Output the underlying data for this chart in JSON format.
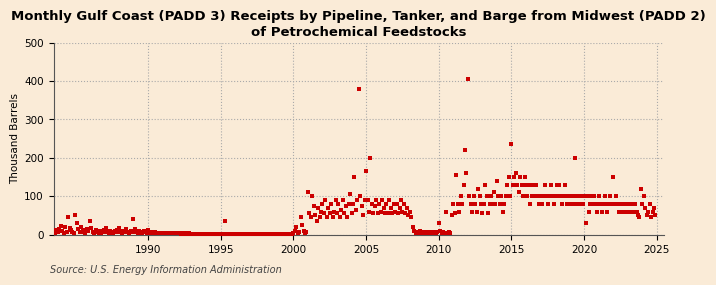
{
  "title": "Monthly Gulf Coast (PADD 3) Receipts by Pipeline, Tanker, and Barge from Midwest (PADD 2)\nof Petrochemical Feedstocks",
  "ylabel": "Thousand Barrels",
  "source": "Source: U.S. Energy Information Administration",
  "background_color": "#faebd7",
  "marker_color": "#cc0000",
  "xlim": [
    1983.5,
    2025.5
  ],
  "ylim": [
    0,
    500
  ],
  "yticks": [
    0,
    100,
    200,
    300,
    400,
    500
  ],
  "xticks": [
    1990,
    1995,
    2000,
    2005,
    2010,
    2015,
    2020,
    2025
  ],
  "data": [
    [
      1983.5,
      8
    ],
    [
      1983.6,
      5
    ],
    [
      1983.7,
      12
    ],
    [
      1983.8,
      8
    ],
    [
      1983.9,
      15
    ],
    [
      1984.0,
      22
    ],
    [
      1984.1,
      10
    ],
    [
      1984.2,
      5
    ],
    [
      1984.3,
      20
    ],
    [
      1984.4,
      8
    ],
    [
      1984.5,
      45
    ],
    [
      1984.6,
      18
    ],
    [
      1984.7,
      12
    ],
    [
      1984.8,
      8
    ],
    [
      1984.9,
      5
    ],
    [
      1985.0,
      50
    ],
    [
      1985.1,
      30
    ],
    [
      1985.2,
      15
    ],
    [
      1985.3,
      8
    ],
    [
      1985.4,
      20
    ],
    [
      1985.5,
      12
    ],
    [
      1985.6,
      8
    ],
    [
      1985.7,
      5
    ],
    [
      1985.8,
      15
    ],
    [
      1985.9,
      10
    ],
    [
      1986.0,
      35
    ],
    [
      1986.1,
      18
    ],
    [
      1986.2,
      8
    ],
    [
      1986.3,
      5
    ],
    [
      1986.4,
      12
    ],
    [
      1986.5,
      8
    ],
    [
      1986.6,
      5
    ],
    [
      1986.7,
      10
    ],
    [
      1986.8,
      5
    ],
    [
      1986.9,
      8
    ],
    [
      1987.0,
      12
    ],
    [
      1987.1,
      18
    ],
    [
      1987.2,
      8
    ],
    [
      1987.3,
      5
    ],
    [
      1987.4,
      10
    ],
    [
      1987.5,
      8
    ],
    [
      1987.6,
      5
    ],
    [
      1987.7,
      10
    ],
    [
      1987.8,
      8
    ],
    [
      1987.9,
      12
    ],
    [
      1988.0,
      18
    ],
    [
      1988.1,
      8
    ],
    [
      1988.2,
      5
    ],
    [
      1988.3,
      10
    ],
    [
      1988.4,
      8
    ],
    [
      1988.5,
      15
    ],
    [
      1988.6,
      8
    ],
    [
      1988.7,
      5
    ],
    [
      1988.8,
      10
    ],
    [
      1988.9,
      8
    ],
    [
      1989.0,
      40
    ],
    [
      1989.1,
      15
    ],
    [
      1989.2,
      8
    ],
    [
      1989.3,
      5
    ],
    [
      1989.4,
      10
    ],
    [
      1989.5,
      8
    ],
    [
      1989.6,
      5
    ],
    [
      1989.7,
      10
    ],
    [
      1989.8,
      8
    ],
    [
      1989.9,
      5
    ],
    [
      1990.0,
      12
    ],
    [
      1990.1,
      8
    ],
    [
      1990.2,
      5
    ],
    [
      1990.3,
      8
    ],
    [
      1990.4,
      5
    ],
    [
      1990.5,
      8
    ],
    [
      1990.6,
      5
    ],
    [
      1990.7,
      3
    ],
    [
      1990.8,
      5
    ],
    [
      1990.9,
      3
    ],
    [
      1991.0,
      5
    ],
    [
      1991.1,
      3
    ],
    [
      1991.2,
      5
    ],
    [
      1991.3,
      3
    ],
    [
      1991.4,
      5
    ],
    [
      1991.5,
      3
    ],
    [
      1991.6,
      5
    ],
    [
      1991.7,
      3
    ],
    [
      1991.8,
      5
    ],
    [
      1991.9,
      3
    ],
    [
      1992.0,
      5
    ],
    [
      1992.1,
      3
    ],
    [
      1992.2,
      5
    ],
    [
      1992.3,
      2
    ],
    [
      1992.4,
      3
    ],
    [
      1992.5,
      2
    ],
    [
      1992.6,
      3
    ],
    [
      1992.7,
      2
    ],
    [
      1992.8,
      3
    ],
    [
      1992.9,
      2
    ],
    [
      1993.0,
      2
    ],
    [
      1993.1,
      1
    ],
    [
      1993.2,
      2
    ],
    [
      1993.3,
      1
    ],
    [
      1993.4,
      2
    ],
    [
      1993.5,
      1
    ],
    [
      1993.6,
      2
    ],
    [
      1993.7,
      1
    ],
    [
      1993.8,
      2
    ],
    [
      1993.9,
      1
    ],
    [
      1994.0,
      2
    ],
    [
      1994.1,
      1
    ],
    [
      1994.2,
      2
    ],
    [
      1994.3,
      1
    ],
    [
      1994.4,
      2
    ],
    [
      1994.5,
      1
    ],
    [
      1994.6,
      2
    ],
    [
      1994.7,
      1
    ],
    [
      1994.8,
      2
    ],
    [
      1994.9,
      1
    ],
    [
      1995.0,
      2
    ],
    [
      1995.1,
      1
    ],
    [
      1995.2,
      2
    ],
    [
      1995.3,
      35
    ],
    [
      1995.4,
      1
    ],
    [
      1995.5,
      2
    ],
    [
      1995.6,
      1
    ],
    [
      1995.7,
      2
    ],
    [
      1995.8,
      1
    ],
    [
      1995.9,
      2
    ],
    [
      1996.0,
      1
    ],
    [
      1996.1,
      2
    ],
    [
      1996.2,
      1
    ],
    [
      1996.3,
      2
    ],
    [
      1996.4,
      1
    ],
    [
      1996.5,
      2
    ],
    [
      1996.6,
      1
    ],
    [
      1996.7,
      2
    ],
    [
      1996.8,
      1
    ],
    [
      1996.9,
      2
    ],
    [
      1997.0,
      1
    ],
    [
      1997.1,
      2
    ],
    [
      1997.2,
      1
    ],
    [
      1997.3,
      2
    ],
    [
      1997.4,
      1
    ],
    [
      1997.5,
      2
    ],
    [
      1997.6,
      1
    ],
    [
      1997.7,
      2
    ],
    [
      1997.8,
      1
    ],
    [
      1997.9,
      2
    ],
    [
      1998.0,
      1
    ],
    [
      1998.1,
      2
    ],
    [
      1998.2,
      1
    ],
    [
      1998.3,
      2
    ],
    [
      1998.4,
      1
    ],
    [
      1998.5,
      2
    ],
    [
      1998.6,
      1
    ],
    [
      1998.7,
      2
    ],
    [
      1998.8,
      1
    ],
    [
      1998.9,
      2
    ],
    [
      1999.0,
      1
    ],
    [
      1999.1,
      2
    ],
    [
      1999.2,
      1
    ],
    [
      1999.3,
      2
    ],
    [
      1999.4,
      1
    ],
    [
      1999.5,
      2
    ],
    [
      1999.6,
      1
    ],
    [
      1999.7,
      2
    ],
    [
      1999.8,
      1
    ],
    [
      1999.9,
      2
    ],
    [
      2000.0,
      5
    ],
    [
      2000.1,
      10
    ],
    [
      2000.2,
      20
    ],
    [
      2000.3,
      5
    ],
    [
      2000.4,
      8
    ],
    [
      2000.5,
      45
    ],
    [
      2000.6,
      25
    ],
    [
      2000.7,
      10
    ],
    [
      2000.8,
      5
    ],
    [
      2000.9,
      8
    ],
    [
      2001.0,
      110
    ],
    [
      2001.1,
      55
    ],
    [
      2001.2,
      45
    ],
    [
      2001.3,
      100
    ],
    [
      2001.4,
      75
    ],
    [
      2001.5,
      50
    ],
    [
      2001.6,
      35
    ],
    [
      2001.7,
      70
    ],
    [
      2001.8,
      45
    ],
    [
      2001.9,
      60
    ],
    [
      2002.0,
      80
    ],
    [
      2002.1,
      55
    ],
    [
      2002.2,
      90
    ],
    [
      2002.3,
      45
    ],
    [
      2002.4,
      70
    ],
    [
      2002.5,
      55
    ],
    [
      2002.6,
      80
    ],
    [
      2002.7,
      45
    ],
    [
      2002.8,
      60
    ],
    [
      2002.9,
      90
    ],
    [
      2003.0,
      55
    ],
    [
      2003.1,
      80
    ],
    [
      2003.2,
      45
    ],
    [
      2003.3,
      65
    ],
    [
      2003.4,
      90
    ],
    [
      2003.5,
      55
    ],
    [
      2003.6,
      75
    ],
    [
      2003.7,
      45
    ],
    [
      2003.8,
      80
    ],
    [
      2003.9,
      105
    ],
    [
      2004.0,
      55
    ],
    [
      2004.1,
      80
    ],
    [
      2004.2,
      150
    ],
    [
      2004.3,
      65
    ],
    [
      2004.4,
      90
    ],
    [
      2004.5,
      380
    ],
    [
      2004.6,
      100
    ],
    [
      2004.7,
      75
    ],
    [
      2004.8,
      50
    ],
    [
      2004.9,
      90
    ],
    [
      2005.0,
      165
    ],
    [
      2005.1,
      90
    ],
    [
      2005.2,
      60
    ],
    [
      2005.3,
      200
    ],
    [
      2005.4,
      80
    ],
    [
      2005.5,
      55
    ],
    [
      2005.6,
      75
    ],
    [
      2005.7,
      90
    ],
    [
      2005.8,
      55
    ],
    [
      2005.9,
      80
    ],
    [
      2006.0,
      60
    ],
    [
      2006.1,
      90
    ],
    [
      2006.2,
      70
    ],
    [
      2006.3,
      55
    ],
    [
      2006.4,
      80
    ],
    [
      2006.5,
      55
    ],
    [
      2006.6,
      90
    ],
    [
      2006.7,
      70
    ],
    [
      2006.8,
      55
    ],
    [
      2006.9,
      80
    ],
    [
      2007.0,
      60
    ],
    [
      2007.1,
      80
    ],
    [
      2007.2,
      55
    ],
    [
      2007.3,
      70
    ],
    [
      2007.4,
      90
    ],
    [
      2007.5,
      60
    ],
    [
      2007.6,
      80
    ],
    [
      2007.7,
      55
    ],
    [
      2007.8,
      70
    ],
    [
      2007.9,
      50
    ],
    [
      2008.0,
      60
    ],
    [
      2008.1,
      45
    ],
    [
      2008.2,
      20
    ],
    [
      2008.3,
      10
    ],
    [
      2008.4,
      5
    ],
    [
      2008.5,
      8
    ],
    [
      2008.6,
      5
    ],
    [
      2008.7,
      10
    ],
    [
      2008.8,
      5
    ],
    [
      2008.9,
      8
    ],
    [
      2009.0,
      5
    ],
    [
      2009.1,
      8
    ],
    [
      2009.2,
      5
    ],
    [
      2009.3,
      8
    ],
    [
      2009.4,
      5
    ],
    [
      2009.5,
      8
    ],
    [
      2009.6,
      5
    ],
    [
      2009.7,
      8
    ],
    [
      2009.8,
      5
    ],
    [
      2009.9,
      8
    ],
    [
      2010.0,
      30
    ],
    [
      2010.1,
      10
    ],
    [
      2010.2,
      5
    ],
    [
      2010.3,
      8
    ],
    [
      2010.4,
      5
    ],
    [
      2010.5,
      60
    ],
    [
      2010.6,
      5
    ],
    [
      2010.7,
      8
    ],
    [
      2010.8,
      5
    ],
    [
      2010.9,
      50
    ],
    [
      2011.0,
      80
    ],
    [
      2011.1,
      55
    ],
    [
      2011.2,
      155
    ],
    [
      2011.3,
      80
    ],
    [
      2011.4,
      60
    ],
    [
      2011.5,
      100
    ],
    [
      2011.6,
      80
    ],
    [
      2011.7,
      130
    ],
    [
      2011.8,
      220
    ],
    [
      2011.9,
      160
    ],
    [
      2012.0,
      405
    ],
    [
      2012.1,
      100
    ],
    [
      2012.2,
      80
    ],
    [
      2012.3,
      60
    ],
    [
      2012.4,
      100
    ],
    [
      2012.5,
      80
    ],
    [
      2012.6,
      60
    ],
    [
      2012.7,
      120
    ],
    [
      2012.8,
      100
    ],
    [
      2012.9,
      80
    ],
    [
      2013.0,
      55
    ],
    [
      2013.1,
      80
    ],
    [
      2013.2,
      130
    ],
    [
      2013.3,
      100
    ],
    [
      2013.4,
      55
    ],
    [
      2013.5,
      80
    ],
    [
      2013.6,
      100
    ],
    [
      2013.7,
      80
    ],
    [
      2013.8,
      110
    ],
    [
      2013.9,
      80
    ],
    [
      2014.0,
      140
    ],
    [
      2014.1,
      100
    ],
    [
      2014.2,
      80
    ],
    [
      2014.3,
      100
    ],
    [
      2014.4,
      60
    ],
    [
      2014.5,
      80
    ],
    [
      2014.6,
      100
    ],
    [
      2014.7,
      130
    ],
    [
      2014.8,
      150
    ],
    [
      2014.9,
      100
    ],
    [
      2015.0,
      235
    ],
    [
      2015.1,
      130
    ],
    [
      2015.2,
      150
    ],
    [
      2015.3,
      160
    ],
    [
      2015.4,
      130
    ],
    [
      2015.5,
      110
    ],
    [
      2015.6,
      150
    ],
    [
      2015.7,
      130
    ],
    [
      2015.8,
      100
    ],
    [
      2015.9,
      150
    ],
    [
      2016.0,
      130
    ],
    [
      2016.1,
      100
    ],
    [
      2016.2,
      130
    ],
    [
      2016.3,
      80
    ],
    [
      2016.4,
      100
    ],
    [
      2016.5,
      130
    ],
    [
      2016.6,
      100
    ],
    [
      2016.7,
      130
    ],
    [
      2016.8,
      100
    ],
    [
      2016.9,
      80
    ],
    [
      2017.0,
      100
    ],
    [
      2017.1,
      80
    ],
    [
      2017.2,
      100
    ],
    [
      2017.3,
      130
    ],
    [
      2017.4,
      100
    ],
    [
      2017.5,
      80
    ],
    [
      2017.6,
      100
    ],
    [
      2017.7,
      130
    ],
    [
      2017.8,
      100
    ],
    [
      2017.9,
      80
    ],
    [
      2018.0,
      100
    ],
    [
      2018.1,
      130
    ],
    [
      2018.2,
      100
    ],
    [
      2018.3,
      130
    ],
    [
      2018.4,
      100
    ],
    [
      2018.5,
      80
    ],
    [
      2018.6,
      100
    ],
    [
      2018.7,
      130
    ],
    [
      2018.8,
      80
    ],
    [
      2018.9,
      100
    ],
    [
      2019.0,
      80
    ],
    [
      2019.1,
      100
    ],
    [
      2019.2,
      80
    ],
    [
      2019.3,
      100
    ],
    [
      2019.4,
      200
    ],
    [
      2019.5,
      80
    ],
    [
      2019.6,
      100
    ],
    [
      2019.7,
      80
    ],
    [
      2019.8,
      100
    ],
    [
      2019.9,
      80
    ],
    [
      2020.0,
      100
    ],
    [
      2020.1,
      30
    ],
    [
      2020.2,
      100
    ],
    [
      2020.3,
      60
    ],
    [
      2020.4,
      80
    ],
    [
      2020.5,
      100
    ],
    [
      2020.6,
      80
    ],
    [
      2020.7,
      100
    ],
    [
      2020.8,
      80
    ],
    [
      2020.9,
      60
    ],
    [
      2021.0,
      100
    ],
    [
      2021.1,
      80
    ],
    [
      2021.2,
      60
    ],
    [
      2021.3,
      80
    ],
    [
      2021.4,
      100
    ],
    [
      2021.5,
      80
    ],
    [
      2021.6,
      60
    ],
    [
      2021.7,
      80
    ],
    [
      2021.8,
      100
    ],
    [
      2021.9,
      80
    ],
    [
      2022.0,
      150
    ],
    [
      2022.1,
      80
    ],
    [
      2022.2,
      100
    ],
    [
      2022.3,
      80
    ],
    [
      2022.4,
      60
    ],
    [
      2022.5,
      80
    ],
    [
      2022.6,
      60
    ],
    [
      2022.7,
      80
    ],
    [
      2022.8,
      60
    ],
    [
      2022.9,
      80
    ],
    [
      2023.0,
      60
    ],
    [
      2023.1,
      80
    ],
    [
      2023.2,
      60
    ],
    [
      2023.3,
      80
    ],
    [
      2023.4,
      60
    ],
    [
      2023.5,
      80
    ],
    [
      2023.6,
      60
    ],
    [
      2023.7,
      50
    ],
    [
      2023.8,
      45
    ],
    [
      2023.9,
      120
    ],
    [
      2024.0,
      80
    ],
    [
      2024.1,
      100
    ],
    [
      2024.2,
      70
    ],
    [
      2024.3,
      50
    ],
    [
      2024.4,
      60
    ],
    [
      2024.5,
      80
    ],
    [
      2024.6,
      45
    ],
    [
      2024.7,
      60
    ],
    [
      2024.8,
      70
    ],
    [
      2024.9,
      50
    ]
  ]
}
